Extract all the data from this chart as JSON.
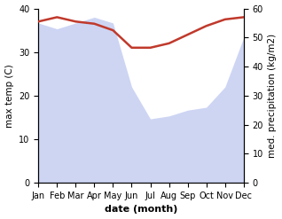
{
  "months": [
    "Jan",
    "Feb",
    "Mar",
    "Apr",
    "May",
    "Jun",
    "Jul",
    "Aug",
    "Sep",
    "Oct",
    "Nov",
    "Dec"
  ],
  "month_indices": [
    0,
    1,
    2,
    3,
    4,
    5,
    6,
    7,
    8,
    9,
    10,
    11
  ],
  "temperature": [
    37,
    38,
    37,
    36.5,
    35,
    31,
    31,
    32,
    34,
    36,
    37.5,
    38
  ],
  "precipitation": [
    55,
    53,
    55,
    57,
    55,
    33,
    22,
    23,
    25,
    26,
    33,
    50
  ],
  "temp_color": "#c0392b",
  "precip_color": "#b3bfee",
  "precip_alpha": 0.65,
  "xlabel": "date (month)",
  "ylabel_left": "max temp (C)",
  "ylabel_right": "med. precipitation (kg/m2)",
  "ylim_left": [
    0,
    40
  ],
  "ylim_right": [
    0,
    60
  ],
  "yticks_left": [
    0,
    10,
    20,
    30,
    40
  ],
  "yticks_right": [
    0,
    10,
    20,
    30,
    40,
    50,
    60
  ],
  "bg_color": "#ffffff",
  "temp_linewidth": 1.8,
  "xlabel_fontsize": 8,
  "ylabel_fontsize": 7.5,
  "tick_fontsize": 7
}
